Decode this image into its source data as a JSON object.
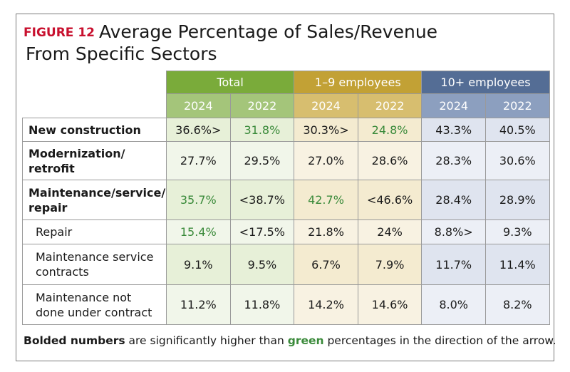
{
  "title": {
    "figure_label": "FIGURE 12",
    "line1": "Average Percentage of Sales/Revenue",
    "line2": "From Specific Sectors"
  },
  "colors": {
    "figure_label": "#c8102e",
    "total": "#7aab3a",
    "small": "#c2a135",
    "large": "#546d95",
    "green_text": "#3a8a3a"
  },
  "chart_data": {
    "type": "table",
    "groups": [
      {
        "key": "total",
        "label": "Total"
      },
      {
        "key": "small",
        "label": "1–9 employees"
      },
      {
        "key": "large",
        "label": "10+ employees"
      }
    ],
    "years": [
      "2024",
      "2022",
      "2024",
      "2022",
      "2024",
      "2022"
    ],
    "rows": [
      {
        "label": "New construction",
        "bold": true,
        "indent": false,
        "cells": [
          {
            "text": "36.6%>",
            "value": 36.6,
            "style": "bold"
          },
          {
            "text": "31.8%",
            "value": 31.8,
            "style": "green"
          },
          {
            "text": "30.3%>",
            "value": 30.3,
            "style": "bold"
          },
          {
            "text": "24.8%",
            "value": 24.8,
            "style": "green"
          },
          {
            "text": "43.3%",
            "value": 43.3,
            "style": "normal"
          },
          {
            "text": "40.5%",
            "value": 40.5,
            "style": "normal"
          }
        ]
      },
      {
        "label": "Modernization/\nretrofit",
        "bold": true,
        "indent": false,
        "cells": [
          {
            "text": "27.7%",
            "value": 27.7,
            "style": "normal"
          },
          {
            "text": "29.5%",
            "value": 29.5,
            "style": "normal"
          },
          {
            "text": "27.0%",
            "value": 27.0,
            "style": "normal"
          },
          {
            "text": "28.6%",
            "value": 28.6,
            "style": "normal"
          },
          {
            "text": "28.3%",
            "value": 28.3,
            "style": "normal"
          },
          {
            "text": "30.6%",
            "value": 30.6,
            "style": "normal"
          }
        ]
      },
      {
        "label": "Maintenance/service/\nrepair",
        "bold": true,
        "indent": false,
        "cells": [
          {
            "text": "35.7%",
            "value": 35.7,
            "style": "green"
          },
          {
            "text": "<38.7%",
            "value": 38.7,
            "style": "bold"
          },
          {
            "text": "42.7%",
            "value": 42.7,
            "style": "green"
          },
          {
            "text": "<46.6%",
            "value": 46.6,
            "style": "bold"
          },
          {
            "text": "28.4%",
            "value": 28.4,
            "style": "normal"
          },
          {
            "text": "28.9%",
            "value": 28.9,
            "style": "normal"
          }
        ]
      },
      {
        "label": "Repair",
        "bold": false,
        "indent": true,
        "cells": [
          {
            "text": "15.4%",
            "value": 15.4,
            "style": "green"
          },
          {
            "text": "<17.5%",
            "value": 17.5,
            "style": "bold"
          },
          {
            "text": "21.8%",
            "value": 21.8,
            "style": "normal"
          },
          {
            "text": "24%",
            "value": 24,
            "style": "normal"
          },
          {
            "text": "8.8%>",
            "value": 8.8,
            "style": "normal"
          },
          {
            "text": "9.3%",
            "value": 9.3,
            "style": "normal"
          }
        ]
      },
      {
        "label": "Maintenance service\ncontracts",
        "bold": false,
        "indent": true,
        "cells": [
          {
            "text": "9.1%",
            "value": 9.1,
            "style": "normal"
          },
          {
            "text": "9.5%",
            "value": 9.5,
            "style": "normal"
          },
          {
            "text": "6.7%",
            "value": 6.7,
            "style": "normal"
          },
          {
            "text": "7.9%",
            "value": 7.9,
            "style": "normal"
          },
          {
            "text": "11.7%",
            "value": 11.7,
            "style": "normal"
          },
          {
            "text": "11.4%",
            "value": 11.4,
            "style": "normal"
          }
        ]
      },
      {
        "label": "Maintenance not\ndone under contract",
        "bold": false,
        "indent": true,
        "cells": [
          {
            "text": "11.2%",
            "value": 11.2,
            "style": "normal"
          },
          {
            "text": "11.8%",
            "value": 11.8,
            "style": "normal"
          },
          {
            "text": "14.2%",
            "value": 14.2,
            "style": "normal"
          },
          {
            "text": "14.6%",
            "value": 14.6,
            "style": "normal"
          },
          {
            "text": "8.0%",
            "value": 8.0,
            "style": "normal"
          },
          {
            "text": "8.2%",
            "value": 8.2,
            "style": "normal"
          }
        ]
      }
    ]
  },
  "footnote": {
    "part1": "Bolded numbers",
    "part2": " are significantly higher than ",
    "part3": "green",
    "part4": " percentages in the direction of the arrow."
  }
}
